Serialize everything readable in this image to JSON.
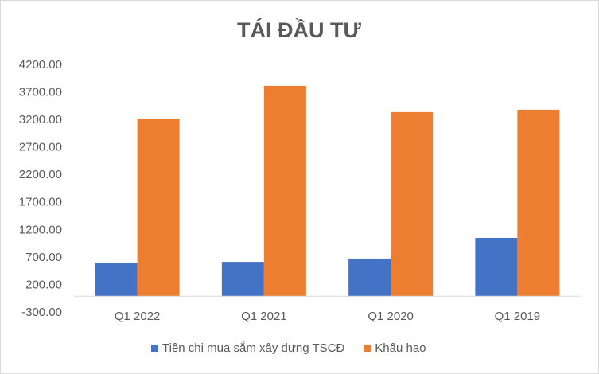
{
  "chart_data": {
    "type": "bar",
    "title": "TÁI ĐẦU TƯ",
    "categories": [
      "Q1 2022",
      "Q1 2021",
      "Q1 2020",
      "Q1 2019"
    ],
    "series": [
      {
        "name": "Tiền chi mua sắm xây dựng TSCĐ",
        "color": "#4472c4",
        "values": [
          610,
          625,
          685,
          1060
        ]
      },
      {
        "name": "Khấu hao",
        "color": "#ed7d31",
        "values": [
          3230,
          3825,
          3348,
          3391
        ]
      }
    ],
    "ylim": [
      -300,
      4200
    ],
    "yticks": [
      {
        "value": -300,
        "label": "-300.00"
      },
      {
        "value": 200,
        "label": "200.00"
      },
      {
        "value": 700,
        "label": "700.00"
      },
      {
        "value": 1200,
        "label": "1200.00"
      },
      {
        "value": 1700,
        "label": "1700.00"
      },
      {
        "value": 2200,
        "label": "2200.00"
      },
      {
        "value": 2700,
        "label": "2700.00"
      },
      {
        "value": 3200,
        "label": "3200.00"
      },
      {
        "value": 3700,
        "label": "3700.00"
      },
      {
        "value": 4200,
        "label": "4200.00"
      }
    ],
    "grid": false,
    "legend": "bottom"
  }
}
